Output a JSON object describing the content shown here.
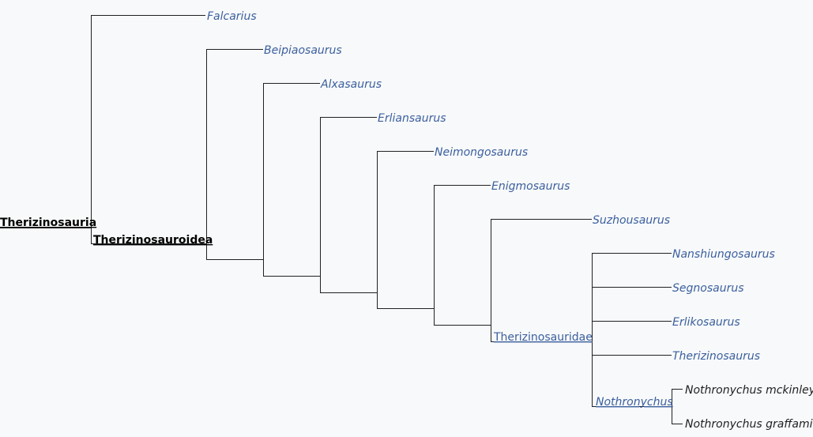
{
  "root": {
    "label": "Therizinosauria"
  },
  "nodes": [
    {
      "label": "Falcarius"
    },
    {
      "label": "Therizinosauroidea"
    },
    {
      "label": "Beipiaosaurus"
    },
    {
      "label": "Alxasaurus"
    },
    {
      "label": "Erliansaurus"
    },
    {
      "label": "Neimongosaurus"
    },
    {
      "label": "Enigmosaurus"
    },
    {
      "label": "Suzhousaurus"
    },
    {
      "label": "Therizinosauridae"
    },
    {
      "label": "Nanshiungosaurus"
    },
    {
      "label": "Segnosaurus"
    },
    {
      "label": "Erlikosaurus"
    },
    {
      "label": "Therizinosaurus"
    },
    {
      "label": "Nothronychus"
    },
    {
      "label": "Nothronychus mckinleyi"
    },
    {
      "label": "Nothronychus graffami"
    }
  ]
}
